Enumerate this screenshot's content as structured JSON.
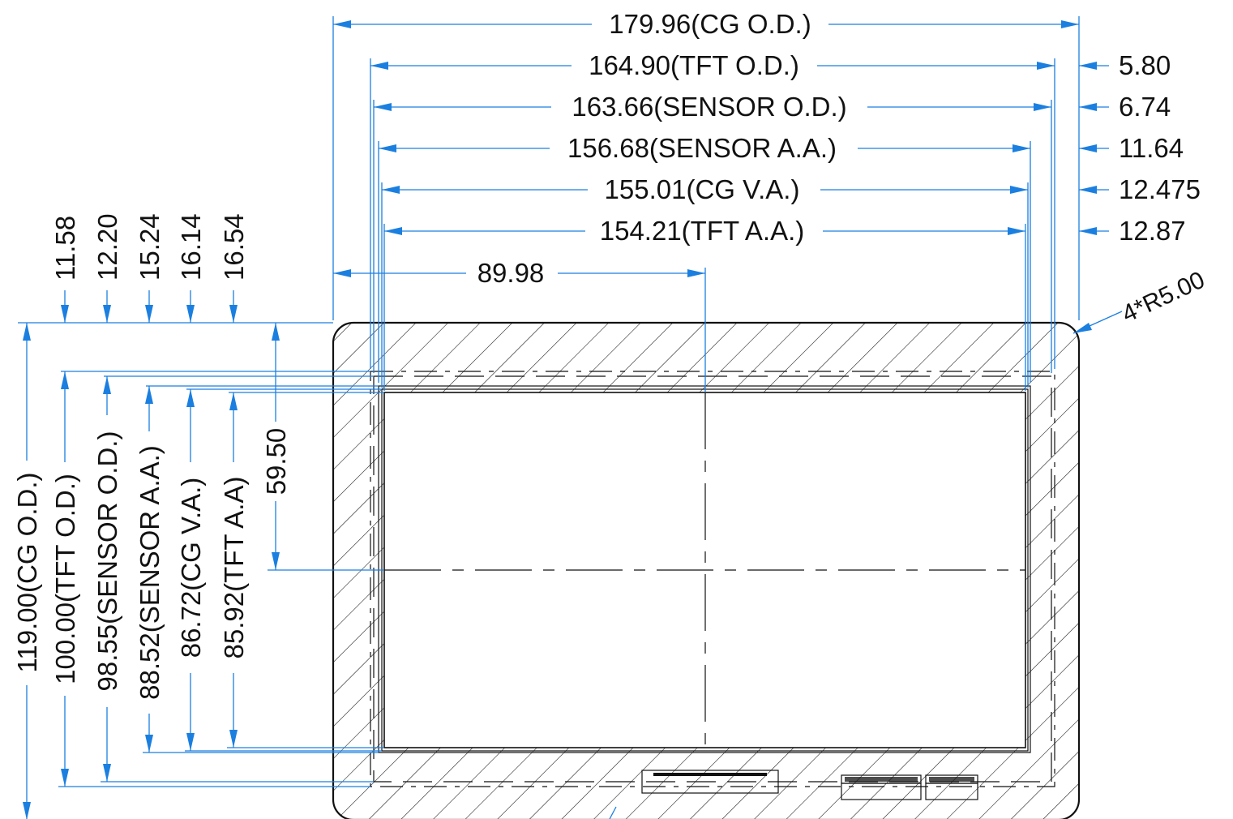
{
  "top_dimensions": [
    {
      "label": "179.96(CG O.D.)"
    },
    {
      "label": "164.90(TFT O.D.)"
    },
    {
      "label": "163.66(SENSOR O.D.)"
    },
    {
      "label": "156.68(SENSOR A.A.)"
    },
    {
      "label": "155.01(CG V.A.)"
    },
    {
      "label": "154.21(TFT A.A.)"
    },
    {
      "label": "89.98"
    }
  ],
  "right_offsets": [
    "5.80",
    "6.74",
    "11.64",
    "12.475",
    "12.87"
  ],
  "corner_radius": "4*R5.00",
  "left_offsets": [
    "11.58",
    "12.20",
    "15.24",
    "16.14",
    "16.54"
  ],
  "left_dimensions": [
    {
      "label": "119.00(CG O.D.)"
    },
    {
      "label": "100.00(TFT O.D.)"
    },
    {
      "label": "98.55(SENSOR O.D.)"
    },
    {
      "label": "88.52(SENSOR A.A.)"
    },
    {
      "label": "86.72(CG V.A.)"
    },
    {
      "label": "85.92(TFT A.A)"
    },
    {
      "label": "59.50"
    }
  ],
  "colors": {
    "dimension": "#1b7fe0",
    "outline": "#111111"
  }
}
